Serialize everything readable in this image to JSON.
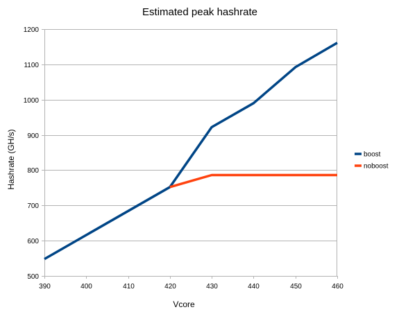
{
  "chart_data": {
    "type": "line",
    "title": "Estimated peak hashrate",
    "xlabel": "Vcore",
    "ylabel": "Hashrate (GH/s)",
    "x": [
      390,
      400,
      410,
      420,
      430,
      440,
      450,
      460
    ],
    "xlim": [
      390,
      460
    ],
    "ylim": [
      500,
      1200
    ],
    "x_ticks": [
      390,
      400,
      410,
      420,
      430,
      440,
      450,
      460
    ],
    "y_ticks": [
      500,
      600,
      700,
      800,
      900,
      1000,
      1100,
      1200
    ],
    "grid": true,
    "legend_position": "right",
    "series": [
      {
        "name": "boost",
        "color": "#004586",
        "points": [
          [
            390,
            548
          ],
          [
            420,
            752
          ],
          [
            430,
            922
          ],
          [
            440,
            990
          ],
          [
            450,
            1092
          ],
          [
            460,
            1161
          ]
        ]
      },
      {
        "name": "noboost",
        "color": "#ff420e",
        "points": [
          [
            420,
            752
          ],
          [
            430,
            786
          ],
          [
            440,
            786
          ],
          [
            450,
            786
          ],
          [
            460,
            786
          ]
        ]
      }
    ]
  }
}
